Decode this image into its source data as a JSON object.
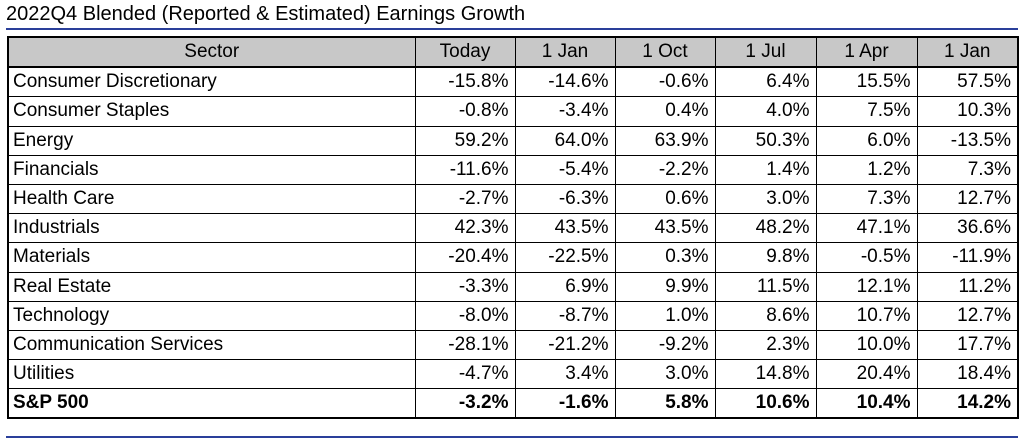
{
  "title": "2022Q4 Blended (Reported & Estimated) Earnings Growth",
  "chart_data": {
    "type": "table",
    "title": "2022Q4 Blended (Reported & Estimated) Earnings Growth",
    "columns": [
      "Sector",
      "Today",
      "1 Jan",
      "1 Oct",
      "1 Jul",
      "1 Apr",
      "1 Jan"
    ],
    "rows": [
      {
        "sector": "Consumer Discretionary",
        "values": [
          "-15.8%",
          "-14.6%",
          "-0.6%",
          "6.4%",
          "15.5%",
          "57.5%"
        ]
      },
      {
        "sector": "Consumer Staples",
        "values": [
          "-0.8%",
          "-3.4%",
          "0.4%",
          "4.0%",
          "7.5%",
          "10.3%"
        ]
      },
      {
        "sector": "Energy",
        "values": [
          "59.2%",
          "64.0%",
          "63.9%",
          "50.3%",
          "6.0%",
          "-13.5%"
        ]
      },
      {
        "sector": "Financials",
        "values": [
          "-11.6%",
          "-5.4%",
          "-2.2%",
          "1.4%",
          "1.2%",
          "7.3%"
        ]
      },
      {
        "sector": "Health Care",
        "values": [
          "-2.7%",
          "-6.3%",
          "0.6%",
          "3.0%",
          "7.3%",
          "12.7%"
        ]
      },
      {
        "sector": "Industrials",
        "values": [
          "42.3%",
          "43.5%",
          "43.5%",
          "48.2%",
          "47.1%",
          "36.6%"
        ]
      },
      {
        "sector": "Materials",
        "values": [
          "-20.4%",
          "-22.5%",
          "0.3%",
          "9.8%",
          "-0.5%",
          "-11.9%"
        ]
      },
      {
        "sector": "Real Estate",
        "values": [
          "-3.3%",
          "6.9%",
          "9.9%",
          "11.5%",
          "12.1%",
          "11.2%"
        ]
      },
      {
        "sector": "Technology",
        "values": [
          "-8.0%",
          "-8.7%",
          "1.0%",
          "8.6%",
          "10.7%",
          "12.7%"
        ]
      },
      {
        "sector": "Communication Services",
        "values": [
          "-28.1%",
          "-21.2%",
          "-9.2%",
          "2.3%",
          "10.0%",
          "17.7%"
        ]
      },
      {
        "sector": "Utilities",
        "values": [
          "-4.7%",
          "3.4%",
          "3.0%",
          "14.8%",
          "20.4%",
          "18.4%"
        ]
      }
    ],
    "total": {
      "sector": "S&P 500",
      "values": [
        "-3.2%",
        "-1.6%",
        "5.8%",
        "10.6%",
        "10.4%",
        "14.2%"
      ]
    }
  },
  "colors": {
    "header_bg": "#c8c8c8",
    "rule": "#2a3f9a"
  }
}
